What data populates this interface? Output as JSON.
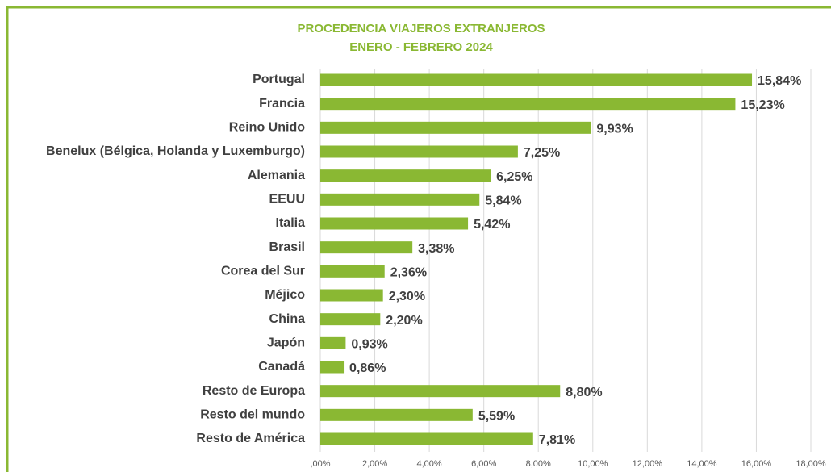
{
  "chart_data": {
    "type": "barh",
    "title": "PROCEDENCIA VIAJEROS EXTRANJEROS",
    "subtitle": "ENERO - FEBRERO 2024",
    "categories": [
      "Portugal",
      "Francia",
      "Reino Unido",
      "Benelux (Bélgica, Holanda y Luxemburgo)",
      "Alemania",
      "EEUU",
      "Italia",
      "Brasil",
      "Corea del Sur",
      "Méjico",
      "China",
      "Japón",
      "Canadá",
      "Resto de Europa",
      "Resto del mundo",
      "Resto de América"
    ],
    "values": [
      15.84,
      15.23,
      9.93,
      7.25,
      6.25,
      5.84,
      5.42,
      3.38,
      2.36,
      2.3,
      2.2,
      0.93,
      0.86,
      8.8,
      5.59,
      7.81
    ],
    "value_labels": [
      "15,84%",
      "15,23%",
      "9,93%",
      "7,25%",
      "6,25%",
      "5,84%",
      "5,42%",
      "3,38%",
      "2,36%",
      "2,30%",
      "2,20%",
      "0,93%",
      "0,86%",
      "8,80%",
      "5,59%",
      "7,81%"
    ],
    "color": "#8ab833",
    "xlim": [
      0,
      18
    ],
    "xticks": [
      {
        "value": 0,
        "label": ",00%"
      },
      {
        "value": 2,
        "label": "2,00%"
      },
      {
        "value": 4,
        "label": "4,00%"
      },
      {
        "value": 6,
        "label": "6,00%"
      },
      {
        "value": 8,
        "label": "8,00%"
      },
      {
        "value": 10,
        "label": "10,00%"
      },
      {
        "value": 12,
        "label": "12,00%"
      },
      {
        "value": 14,
        "label": "14,00%"
      },
      {
        "value": 16,
        "label": "16,00%"
      },
      {
        "value": 18,
        "label": "18,00%"
      }
    ],
    "grid": true
  }
}
